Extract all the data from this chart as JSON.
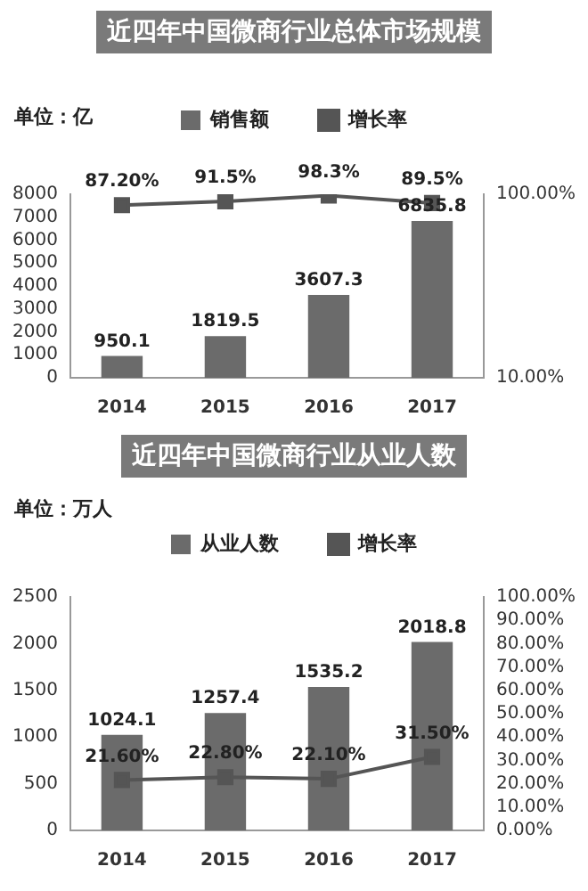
{
  "chart_data": [
    {
      "type": "bar",
      "title": "近四年中国微商行业总体市场规模",
      "ylabel": "单位：亿",
      "categories": [
        "2014",
        "2015",
        "2016",
        "2017"
      ],
      "series": [
        {
          "name": "销售额",
          "color": "#6b6b6b",
          "values": [
            950.1,
            1819.5,
            3607.3,
            6835.8
          ],
          "value_labels": [
            "950.1",
            "1819.5",
            "3607.3",
            "6835.8"
          ]
        },
        {
          "name": "增长率",
          "type": "line",
          "axis": "y2",
          "color": "#555555",
          "values": [
            87.2,
            91.5,
            98.3,
            89.5
          ],
          "value_labels": [
            "87.20%",
            "91.5%",
            "98.3%",
            "89.5%"
          ]
        }
      ],
      "ylim": [
        0,
        8000
      ],
      "yticks": [
        0,
        1000,
        2000,
        3000,
        4000,
        5000,
        6000,
        7000,
        8000
      ],
      "y2lim": [
        10,
        100
      ],
      "y2ticks": [
        {
          "value": 10,
          "label": "10.00%"
        },
        {
          "value": 100,
          "label": "100.00%"
        }
      ],
      "log": "y2",
      "legend": "top",
      "marker": "square"
    },
    {
      "type": "bar",
      "title": "近四年中国微商行业从业人数",
      "ylabel": "单位：万人",
      "categories": [
        "2014",
        "2015",
        "2016",
        "2017"
      ],
      "series": [
        {
          "name": "从业人数",
          "color": "#6b6b6b",
          "values": [
            1024.1,
            1257.4,
            1535.2,
            2018.8
          ],
          "value_labels": [
            "1024.1",
            "1257.4",
            "1535.2",
            "2018.8"
          ]
        },
        {
          "name": "增长率",
          "type": "line",
          "axis": "y2",
          "color": "#555555",
          "values": [
            21.6,
            22.8,
            22.1,
            31.5
          ],
          "value_labels": [
            "21.60%",
            "22.80%",
            "22.10%",
            "31.50%"
          ]
        }
      ],
      "ylim": [
        0,
        2500
      ],
      "yticks": [
        0,
        500,
        1000,
        1500,
        2000,
        2500
      ],
      "y2lim": [
        0,
        100
      ],
      "y2ticks": [
        {
          "value": 0,
          "label": "0.00%"
        },
        {
          "value": 10,
          "label": "10.00%"
        },
        {
          "value": 20,
          "label": "20.00%"
        },
        {
          "value": 30,
          "label": "30.00%"
        },
        {
          "value": 40,
          "label": "40.00%"
        },
        {
          "value": 50,
          "label": "50.00%"
        },
        {
          "value": 60,
          "label": "60.00%"
        },
        {
          "value": 70,
          "label": "70.00%"
        },
        {
          "value": 80,
          "label": "80.00%"
        },
        {
          "value": 90,
          "label": "90.00%"
        },
        {
          "value": 100,
          "label": "100.00%"
        }
      ],
      "legend": "top",
      "marker": "square"
    }
  ]
}
